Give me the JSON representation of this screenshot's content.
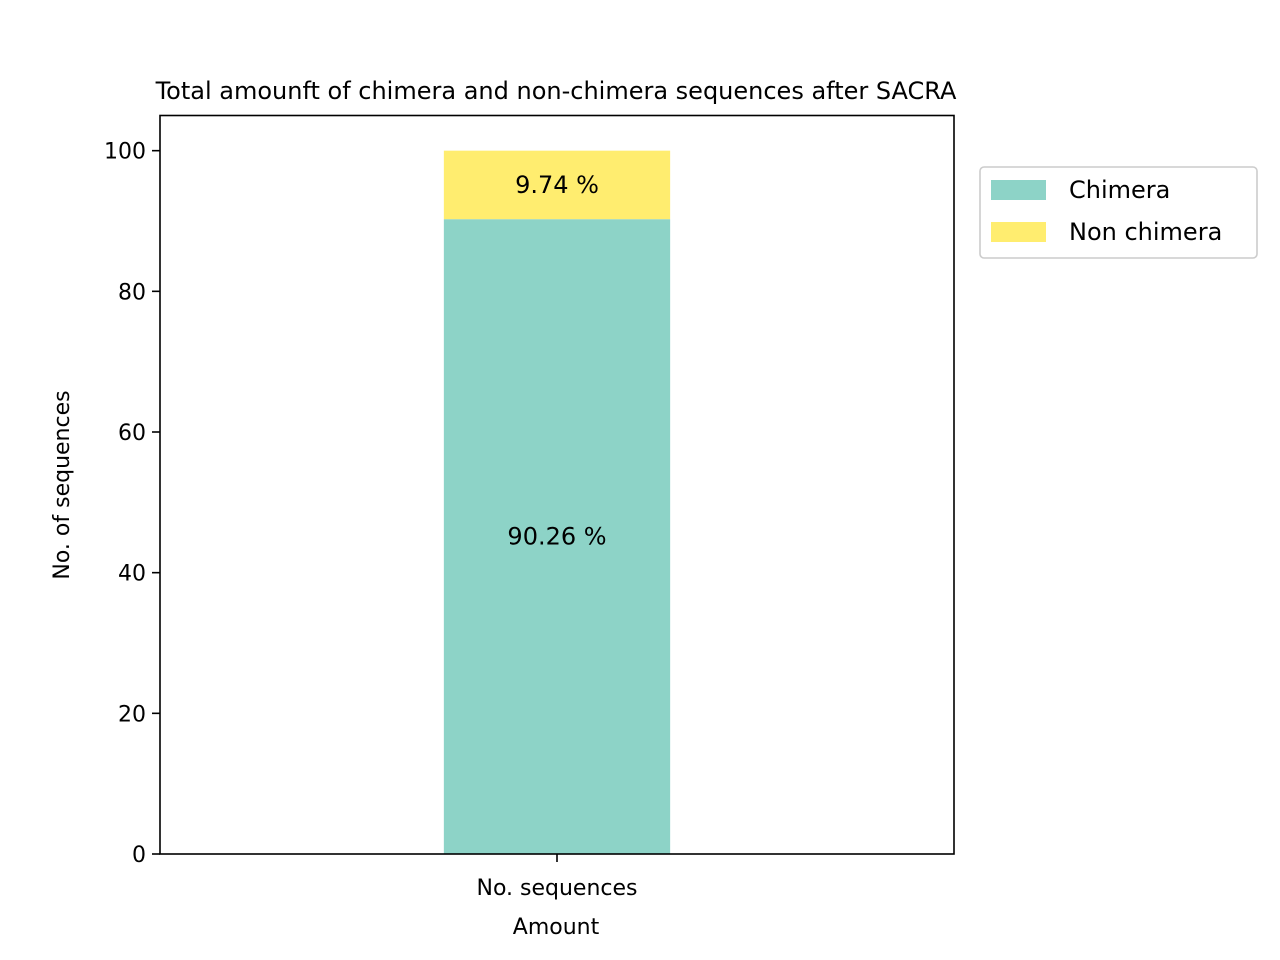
{
  "chart_data": {
    "type": "bar",
    "stacked": true,
    "title": "Total amounft of chimera and non-chimera sequences after SACRA",
    "xlabel": "Amount",
    "ylabel": "No. of sequences",
    "categories": [
      "No. sequences"
    ],
    "ylim": [
      0,
      105
    ],
    "yticks": [
      0,
      20,
      40,
      60,
      80,
      100
    ],
    "ytick_labels": [
      "0",
      "20",
      "40",
      "60",
      "80",
      "100"
    ],
    "grid": false,
    "legend_position": "outside-top-right",
    "series": [
      {
        "name": "Chimera",
        "values": [
          90.26
        ],
        "label": "90.26 %",
        "color": "#8dd3c7"
      },
      {
        "name": "Non chimera",
        "values": [
          9.74
        ],
        "label": "9.74 %",
        "color": "#ffed6f"
      }
    ]
  }
}
